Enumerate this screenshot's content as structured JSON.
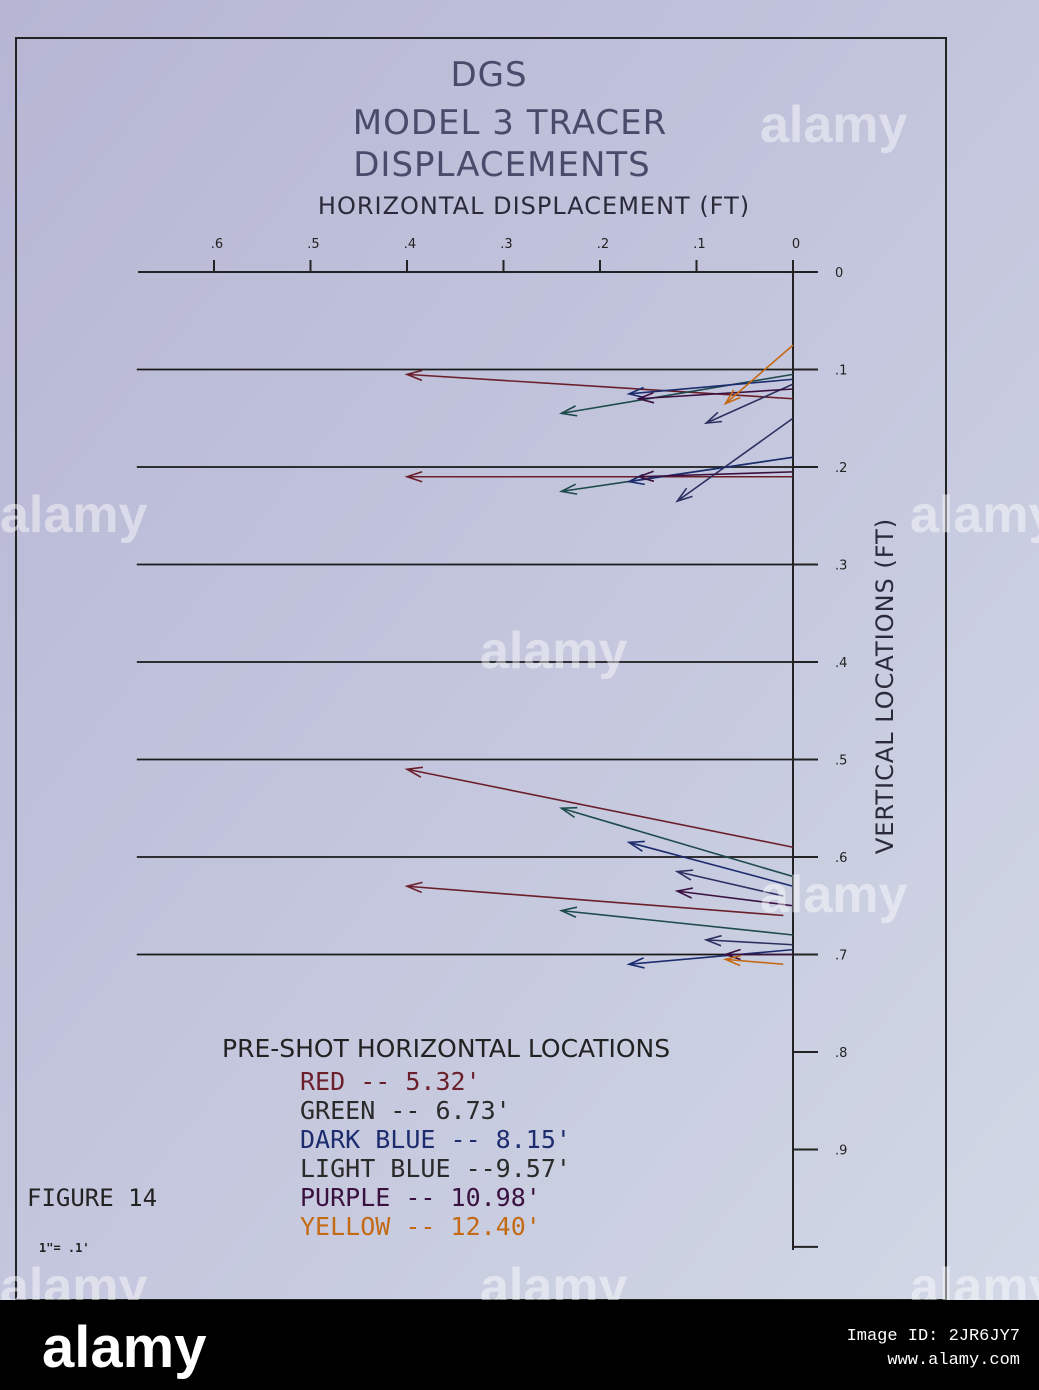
{
  "chart_data": {
    "type": "vector",
    "title_lines": [
      "DGS",
      "MODEL 3 TRACER",
      "DISPLACEMENTS"
    ],
    "xlabel": "HORIZONTAL DISPLACEMENT  (FT)",
    "ylabel": "VERTICAL LOCATIONS  (FT)",
    "x_ticks": [
      ".6",
      ".5",
      ".4",
      ".3",
      ".2",
      ".1",
      "0"
    ],
    "y_ticks": [
      "0",
      ".1",
      ".2",
      ".3",
      ".4",
      ".5",
      ".6",
      ".7",
      ".8",
      ".9"
    ],
    "xlim": [
      0,
      0.65
    ],
    "ylim": [
      0,
      0.93
    ],
    "reference_levels": [
      0.1,
      0.2,
      0.3,
      0.4,
      0.5,
      0.6,
      0.7
    ],
    "series": [
      {
        "name": "RED",
        "color": "#6b1f2b",
        "vectors": [
          {
            "x0": 0.0,
            "y0": 0.13,
            "x1": 0.4,
            "y1": 0.105
          },
          {
            "x0": 0.0,
            "y0": 0.21,
            "x1": 0.4,
            "y1": 0.21
          },
          {
            "x0": 0.0,
            "y0": 0.59,
            "x1": 0.4,
            "y1": 0.51
          },
          {
            "x0": 0.01,
            "y0": 0.66,
            "x1": 0.4,
            "y1": 0.63
          }
        ]
      },
      {
        "name": "GREEN",
        "color": "#1d4a4a",
        "vectors": [
          {
            "x0": 0.0,
            "y0": 0.105,
            "x1": 0.24,
            "y1": 0.145
          },
          {
            "x0": 0.0,
            "y0": 0.19,
            "x1": 0.24,
            "y1": 0.225
          },
          {
            "x0": 0.0,
            "y0": 0.62,
            "x1": 0.24,
            "y1": 0.55
          },
          {
            "x0": 0.0,
            "y0": 0.68,
            "x1": 0.24,
            "y1": 0.655
          }
        ]
      },
      {
        "name": "DARK BLUE",
        "color": "#1c2c6e",
        "vectors": [
          {
            "x0": 0.0,
            "y0": 0.11,
            "x1": 0.17,
            "y1": 0.125
          },
          {
            "x0": 0.0,
            "y0": 0.19,
            "x1": 0.17,
            "y1": 0.215
          },
          {
            "x0": 0.0,
            "y0": 0.63,
            "x1": 0.17,
            "y1": 0.585
          },
          {
            "x0": 0.0,
            "y0": 0.695,
            "x1": 0.17,
            "y1": 0.71
          }
        ]
      },
      {
        "name": "LIGHT BLUE",
        "color": "#2c3060",
        "vectors": [
          {
            "x0": 0.0,
            "y0": 0.115,
            "x1": 0.09,
            "y1": 0.155
          },
          {
            "x0": 0.0,
            "y0": 0.15,
            "x1": 0.12,
            "y1": 0.235
          },
          {
            "x0": 0.01,
            "y0": 0.64,
            "x1": 0.12,
            "y1": 0.615
          },
          {
            "x0": 0.0,
            "y0": 0.69,
            "x1": 0.09,
            "y1": 0.685
          }
        ]
      },
      {
        "name": "PURPLE",
        "color": "#3a1040",
        "vectors": [
          {
            "x0": 0.0,
            "y0": 0.12,
            "x1": 0.16,
            "y1": 0.13
          },
          {
            "x0": 0.0,
            "y0": 0.205,
            "x1": 0.16,
            "y1": 0.21
          },
          {
            "x0": 0.0,
            "y0": 0.65,
            "x1": 0.12,
            "y1": 0.635
          },
          {
            "x0": 0.0,
            "y0": 0.7,
            "x1": 0.07,
            "y1": 0.7
          }
        ]
      },
      {
        "name": "YELLOW",
        "color": "#c46a14",
        "vectors": [
          {
            "x0": 0.0,
            "y0": 0.075,
            "x1": 0.07,
            "y1": 0.135
          },
          {
            "x0": 0.01,
            "y0": 0.71,
            "x1": 0.07,
            "y1": 0.705
          }
        ]
      }
    ]
  },
  "legend": {
    "heading": "PRE-SHOT HORIZONTAL LOCATIONS",
    "items": [
      {
        "text": "RED -- 5.32'",
        "color": "#6b1f2b"
      },
      {
        "text": "GREEN -- 6.73'",
        "color": "#2a2a2a"
      },
      {
        "text": "DARK BLUE -- 8.15'",
        "color": "#1c2c6e"
      },
      {
        "text": "LIGHT BLUE --9.57'",
        "color": "#2a2a2a"
      },
      {
        "text": "PURPLE -- 10.98'",
        "color": "#3a1040"
      },
      {
        "text": "YELLOW -- 12.40'",
        "color": "#c46a14"
      }
    ]
  },
  "figure_label": "FIGURE 14",
  "scale_note": "1\"= .1'",
  "watermark": {
    "text": "alamy",
    "footer_left": "alamy",
    "footer_right_id": "Image ID: 2JR6JY7",
    "footer_right_url": "www.alamy.com"
  }
}
